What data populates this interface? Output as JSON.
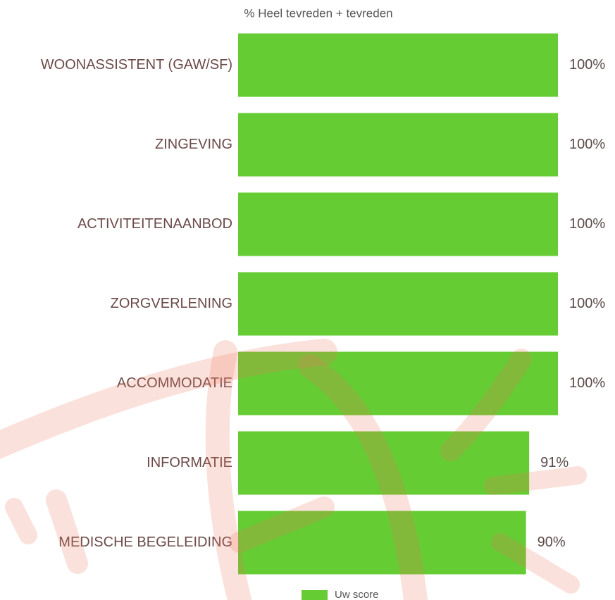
{
  "chart_data": {
    "type": "bar",
    "orientation": "horizontal",
    "title": "% Heel tevreden + tevreden",
    "categories": [
      "WOONASSISTENT (GAW/SF)",
      "ZINGEVING",
      "ACTIVITEITENAANBOD",
      "ZORGVERLENING",
      "ACCOMMODATIE",
      "INFORMATIE",
      "MEDISCHE BEGELEIDING"
    ],
    "series": [
      {
        "name": "Uw score",
        "color": "#66cc33",
        "values": [
          100,
          100,
          100,
          100,
          100,
          91,
          90
        ],
        "value_labels": [
          "100%",
          "100%",
          "100%",
          "100%",
          "100%",
          "91%",
          "90%"
        ]
      }
    ],
    "xlim": [
      0,
      100
    ]
  }
}
